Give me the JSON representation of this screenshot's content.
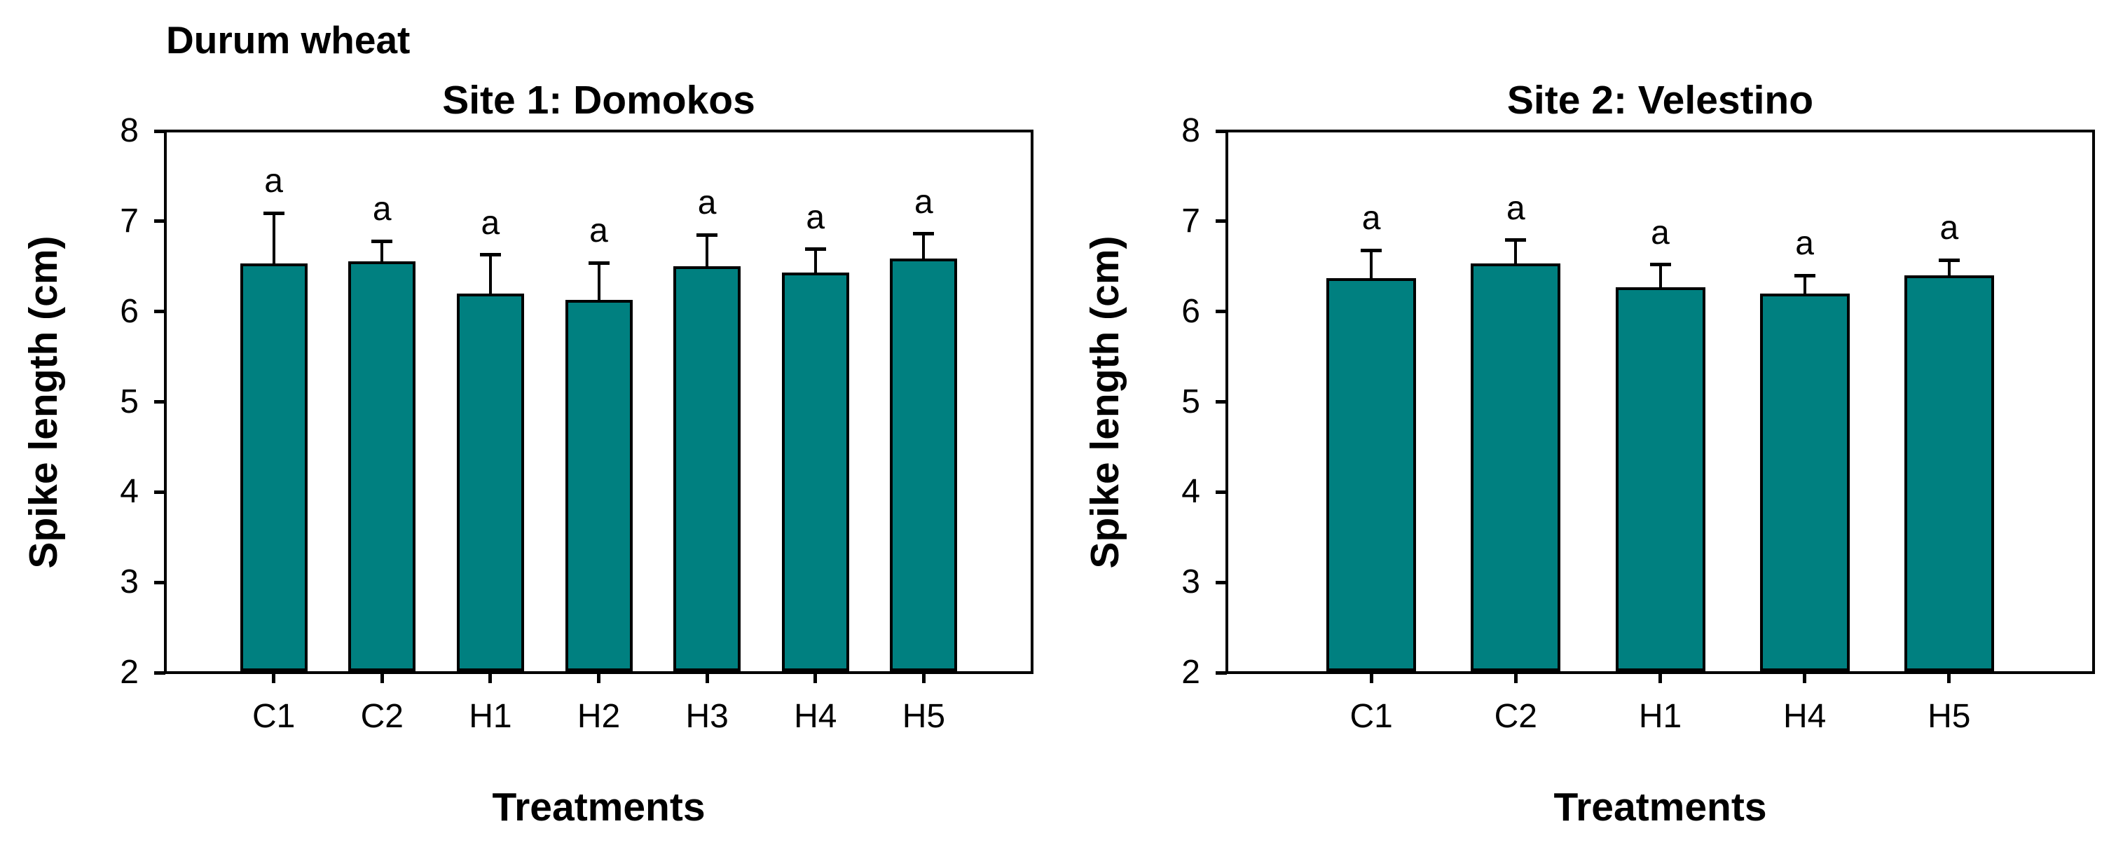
{
  "figure": {
    "label": "Durum wheat"
  },
  "colors": {
    "background": "#ffffff",
    "bar_fill": "#008080",
    "bar_border": "#000000",
    "axis": "#000000",
    "text": "#000000"
  },
  "chart_data": [
    {
      "type": "bar",
      "title": "Site 1: Domokos",
      "xlabel": "Treatments",
      "ylabel": "Spike length (cm)",
      "ylim": [
        2,
        8
      ],
      "yticks": [
        2,
        3,
        4,
        5,
        6,
        7,
        8
      ],
      "grid": false,
      "legend": "none",
      "categories": [
        "C1",
        "C2",
        "H1",
        "H2",
        "H3",
        "H4",
        "H5"
      ],
      "values": [
        6.53,
        6.56,
        6.2,
        6.13,
        6.5,
        6.43,
        6.59
      ],
      "errors": [
        0.56,
        0.22,
        0.43,
        0.41,
        0.35,
        0.26,
        0.27
      ],
      "sig_letters": [
        "a",
        "a",
        "a",
        "a",
        "a",
        "a",
        "a"
      ]
    },
    {
      "type": "bar",
      "title": "Site 2: Velestino",
      "xlabel": "Treatments",
      "ylabel": "Spike length (cm)",
      "ylim": [
        2,
        8
      ],
      "yticks": [
        2,
        3,
        4,
        5,
        6,
        7,
        8
      ],
      "grid": false,
      "legend": "none",
      "categories": [
        "C1",
        "C2",
        "H1",
        "H4",
        "H5"
      ],
      "values": [
        6.37,
        6.53,
        6.27,
        6.2,
        6.4
      ],
      "errors": [
        0.31,
        0.26,
        0.25,
        0.2,
        0.17
      ],
      "sig_letters": [
        "a",
        "a",
        "a",
        "a",
        "a"
      ]
    }
  ]
}
